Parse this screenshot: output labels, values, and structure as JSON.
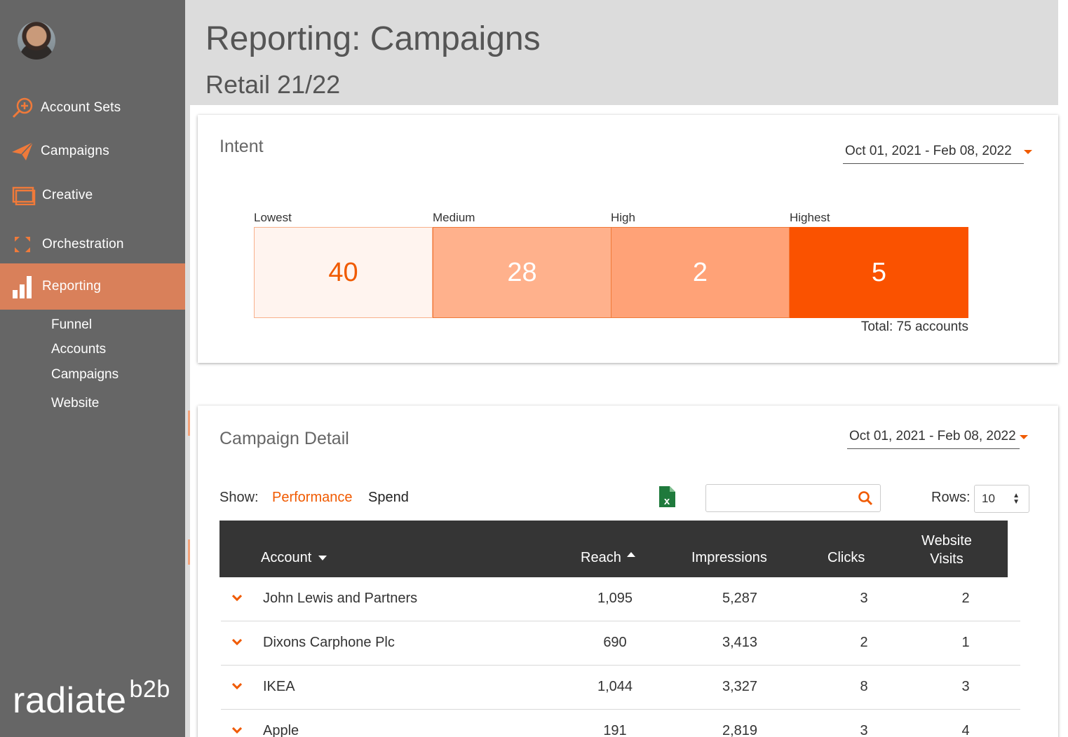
{
  "sidebar": {
    "nav": [
      {
        "label": "Account Sets",
        "icon": "search-plus-icon"
      },
      {
        "label": "Campaigns",
        "icon": "paper-plane-icon"
      },
      {
        "label": "Creative",
        "icon": "window-icon"
      },
      {
        "label": "Orchestration",
        "icon": "expand-arrows-icon"
      },
      {
        "label": "Reporting",
        "icon": "bar-chart-icon",
        "active": true
      }
    ],
    "sub_items": [
      "Funnel",
      "Accounts",
      "Campaigns",
      "Website"
    ],
    "logo": {
      "main": "radiate",
      "sup": "b2b"
    }
  },
  "header": {
    "title": "Reporting: Campaigns",
    "subtitle": "Retail 21/22"
  },
  "intent": {
    "title": "Intent",
    "date_range": "Oct 01, 2021 - Feb 08, 2022",
    "segments": [
      {
        "label": "Lowest",
        "value": "40",
        "bg": "#fff4ef",
        "fg": "#f05a00"
      },
      {
        "label": "Medium",
        "value": "28",
        "bg": "#ffb18c",
        "fg": "#ffffff"
      },
      {
        "label": "High",
        "value": "2",
        "bg": "#ffa277",
        "fg": "#ffffff"
      },
      {
        "label": "Highest",
        "value": "5",
        "bg": "#fa5200",
        "fg": "#ffffff"
      }
    ],
    "total": "Total: 75 accounts"
  },
  "detail": {
    "title": "Campaign Detail",
    "date_range": "Oct 01, 2021 - Feb 08, 2022",
    "show_label": "Show:",
    "tabs": [
      "Performance",
      "Spend"
    ],
    "active_tab": "Performance",
    "search_placeholder": "",
    "rows_label": "Rows:",
    "rows_value": "10",
    "columns": {
      "account": "Account",
      "reach": "Reach",
      "impressions": "Impressions",
      "clicks": "Clicks",
      "visits_line1": "Website",
      "visits_line2": "Visits"
    },
    "rows": [
      {
        "account": "John Lewis and Partners",
        "reach": "1,095",
        "impressions": "5,287",
        "clicks": "3",
        "visits": "2"
      },
      {
        "account": "Dixons Carphone Plc",
        "reach": "690",
        "impressions": "3,413",
        "clicks": "2",
        "visits": "1"
      },
      {
        "account": "IKEA",
        "reach": "1,044",
        "impressions": "3,327",
        "clicks": "8",
        "visits": "3"
      },
      {
        "account": "Apple",
        "reach": "191",
        "impressions": "2,819",
        "clicks": "3",
        "visits": "4"
      }
    ]
  },
  "colors": {
    "accent": "#f05a00",
    "sidebar": "#666666",
    "active_nav": "#d9805a",
    "table_header": "#353535"
  }
}
